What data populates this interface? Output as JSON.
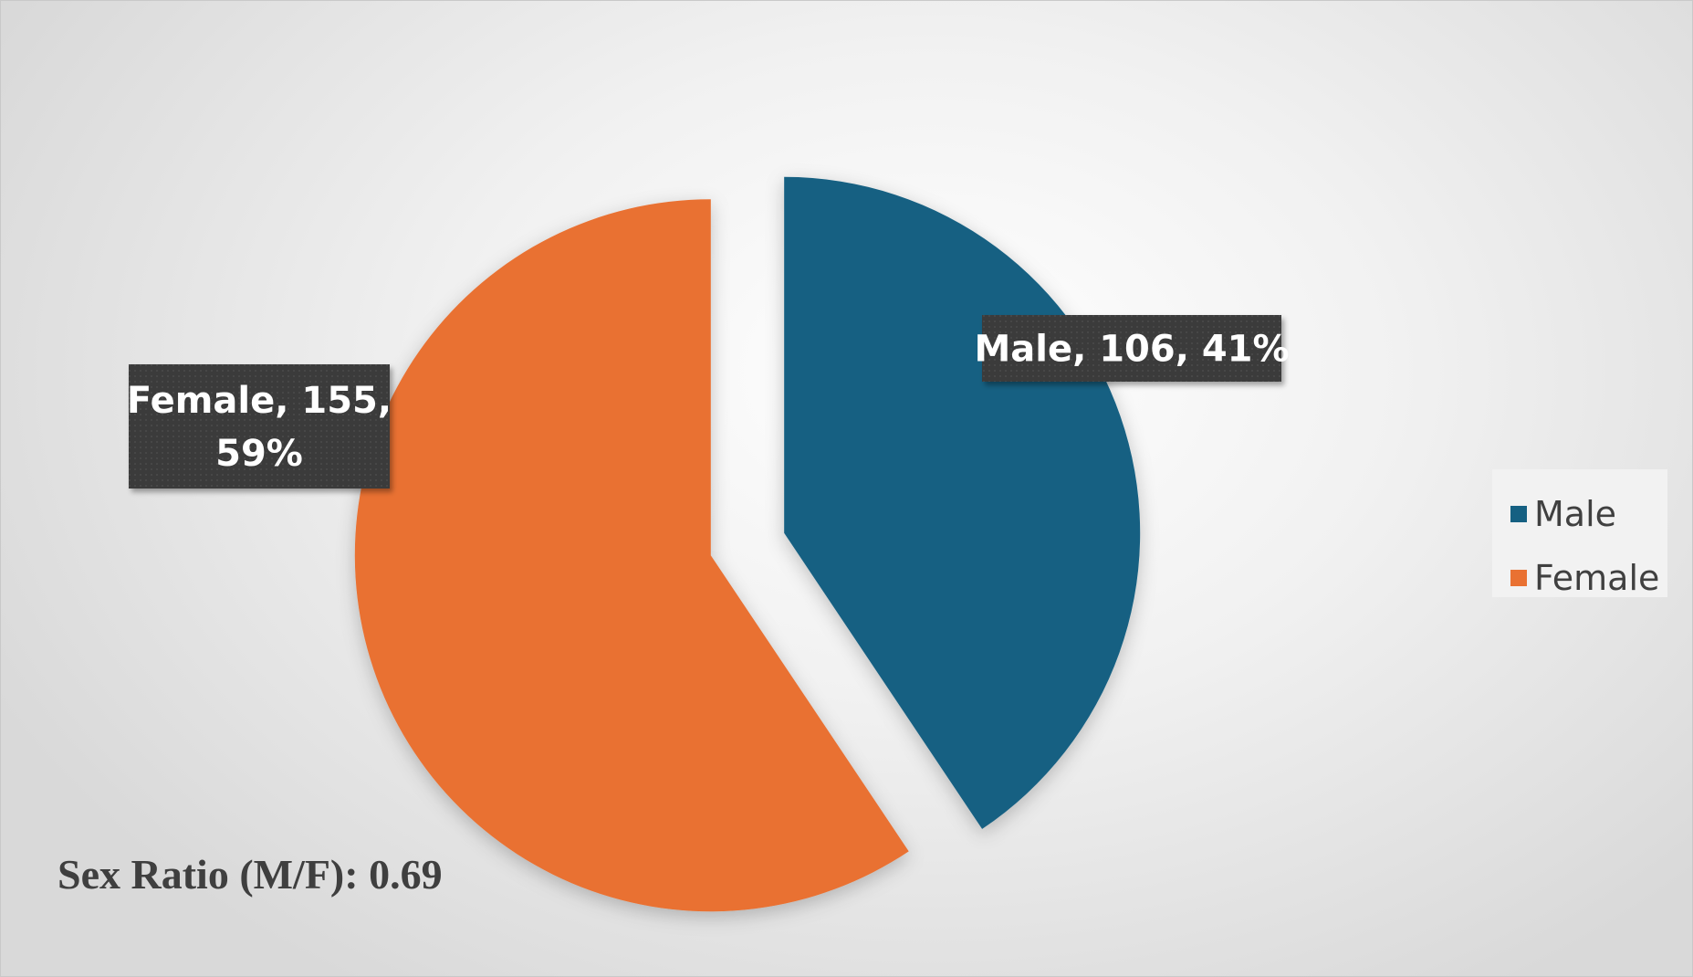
{
  "chart_data": {
    "type": "pie",
    "title": "",
    "slices": [
      {
        "name": "Male",
        "value": 106,
        "percent": 41,
        "color": "#156082",
        "label_lines": [
          "Male, 106, 41%"
        ]
      },
      {
        "name": "Female",
        "value": 155,
        "percent": 59,
        "color": "#E97132",
        "label_lines": [
          "Female, 155,",
          "59%"
        ]
      }
    ],
    "start_angle_deg": 0,
    "direction": "clockwise",
    "exploded": true,
    "legend": {
      "placement": "right",
      "entries": [
        "Male",
        "Female"
      ]
    }
  },
  "annotation": {
    "text": "Sex Ratio (M/F): 0.69"
  }
}
